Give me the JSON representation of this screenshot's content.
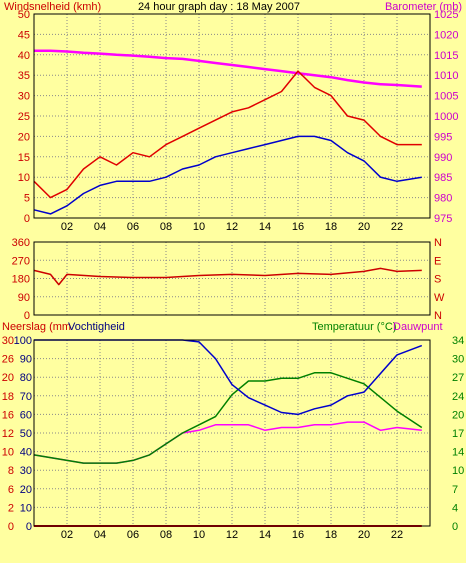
{
  "colors": {
    "background": "#ffffa0",
    "frame": "#000000",
    "wind_gust": "#e00000",
    "wind_avg": "#0000cc",
    "barometer": "#ff00ff",
    "direction": "#cc0000",
    "humidity": "#0000cc",
    "temperature": "#008000",
    "dewpoint": "#ff00ff",
    "rain": "#e00000",
    "label_red": "#cc0000",
    "label_green": "#008000",
    "label_magenta": "#cc00cc",
    "label_blue": "#000080"
  },
  "top_panel": {
    "title": "24 hour graph day : 18 May 2007",
    "left_label": "Windsnelheid (kmh)",
    "right_label": "Barometer (mb)",
    "left_ticks": [
      "0",
      "5",
      "10",
      "15",
      "20",
      "25",
      "30",
      "35",
      "40",
      "45",
      "50"
    ],
    "right_ticks": [
      "975",
      "980",
      "985",
      "990",
      "995",
      "1000",
      "1005",
      "1010",
      "1015",
      "1020",
      "1025"
    ],
    "x_ticks": [
      "02",
      "04",
      "06",
      "08",
      "10",
      "12",
      "14",
      "16",
      "18",
      "20",
      "22"
    ]
  },
  "mid_panel": {
    "left_ticks": [
      "0",
      "90",
      "180",
      "270",
      "360"
    ],
    "compass": [
      "N",
      "W",
      "S",
      "E",
      "N"
    ]
  },
  "bottom_panel": {
    "rain_label": "Neerslag (mm",
    "hum_label": "Vochtigheid",
    "temp_label": "Temperatuur (°C)",
    "dew_label": "Dauwpunt",
    "rain_ticks": [
      "0",
      "2",
      "4",
      "6",
      "8",
      "10",
      "12",
      "14",
      "16",
      "18",
      "20",
      "22",
      "24",
      "26",
      "28",
      "30"
    ],
    "hum_ticks": [
      "0",
      "10",
      "20",
      "30",
      "40",
      "50",
      "60",
      "70",
      "80",
      "90",
      "100"
    ],
    "right_ticks": [
      "0",
      "4",
      "7",
      "10",
      "14",
      "17",
      "20",
      "24",
      "27",
      "30",
      "34"
    ],
    "x_ticks": [
      "02",
      "04",
      "06",
      "08",
      "10",
      "12",
      "14",
      "16",
      "18",
      "20",
      "22"
    ]
  },
  "chart_data": [
    {
      "type": "line",
      "title": "24 hour graph day : 18 May 2007",
      "xlabel": "",
      "ylabel": "Windsnelheid (kmh)",
      "y2label": "Barometer (mb)",
      "xlim": [
        0,
        24
      ],
      "ylim": [
        0,
        50
      ],
      "y2lim": [
        975,
        1025
      ],
      "grid": true,
      "x": [
        0,
        1,
        2,
        3,
        4,
        5,
        6,
        7,
        8,
        9,
        10,
        11,
        12,
        13,
        14,
        15,
        16,
        17,
        18,
        19,
        20,
        21,
        22,
        23.5
      ],
      "series": [
        {
          "name": "wind_gust",
          "axis": "left",
          "values": [
            9,
            5,
            7,
            12,
            15,
            13,
            16,
            15,
            18,
            20,
            22,
            24,
            26,
            27,
            29,
            31,
            36,
            32,
            30,
            25,
            24,
            20,
            18,
            18
          ]
        },
        {
          "name": "wind_avg",
          "axis": "left",
          "values": [
            2,
            1,
            3,
            6,
            8,
            9,
            9,
            9,
            10,
            12,
            13,
            15,
            16,
            17,
            18,
            19,
            20,
            20,
            19,
            16,
            14,
            10,
            9,
            10
          ]
        },
        {
          "name": "barometer",
          "axis": "right",
          "values": [
            1016,
            1016,
            1015.8,
            1015.5,
            1015.3,
            1015,
            1014.8,
            1014.5,
            1014.2,
            1014,
            1013.5,
            1013,
            1012.5,
            1012,
            1011.5,
            1011,
            1010.5,
            1010,
            1009.5,
            1008.8,
            1008.2,
            1007.8,
            1007.6,
            1007.2
          ]
        }
      ]
    },
    {
      "type": "line",
      "title": "",
      "ylabel": "",
      "xlim": [
        0,
        24
      ],
      "ylim": [
        0,
        360
      ],
      "grid": true,
      "x": [
        0,
        1,
        1.5,
        2,
        4,
        6,
        8,
        10,
        12,
        14,
        16,
        18,
        20,
        21,
        22,
        23.5
      ],
      "series": [
        {
          "name": "wind_direction",
          "axis": "left",
          "values": [
            220,
            200,
            150,
            200,
            190,
            185,
            185,
            195,
            200,
            195,
            205,
            200,
            215,
            230,
            215,
            220
          ]
        }
      ]
    },
    {
      "type": "line",
      "title": "",
      "ylabel": "Vochtigheid",
      "y2label": "Temperatuur (°C)",
      "xlim": [
        0,
        24
      ],
      "ylim": [
        0,
        100
      ],
      "y2lim": [
        0,
        34
      ],
      "grid": true,
      "x": [
        0,
        1,
        2,
        3,
        4,
        5,
        6,
        7,
        8,
        9,
        10,
        11,
        12,
        13,
        14,
        15,
        16,
        17,
        18,
        19,
        20,
        21,
        22,
        23.5
      ],
      "series": [
        {
          "name": "humidity",
          "axis": "left",
          "values": [
            100,
            100,
            100,
            100,
            100,
            100,
            100,
            100,
            100,
            100,
            99,
            90,
            76,
            69,
            65,
            61,
            60,
            63,
            65,
            70,
            72,
            82,
            92,
            97
          ]
        },
        {
          "name": "temperature",
          "axis": "right",
          "values": [
            13,
            12.5,
            12,
            11.5,
            11.5,
            11.5,
            12,
            13,
            15,
            17,
            18.5,
            20,
            24,
            26.5,
            26.5,
            27,
            27,
            28,
            28,
            27,
            26,
            23.5,
            21,
            18
          ]
        },
        {
          "name": "dewpoint",
          "axis": "right",
          "values": [
            13,
            12.5,
            12,
            11.5,
            11.5,
            11.5,
            12,
            13,
            15,
            17,
            17.5,
            18.5,
            18.5,
            18.5,
            17.5,
            18,
            18,
            18.5,
            18.5,
            19,
            19,
            17.5,
            18,
            17.5
          ]
        },
        {
          "name": "rain",
          "axis": "left",
          "values": [
            0,
            0,
            0,
            0,
            0,
            0,
            0,
            0,
            0,
            0,
            0,
            0,
            0,
            0,
            0,
            0,
            0,
            0,
            0,
            0,
            0,
            0,
            0,
            0
          ]
        }
      ]
    }
  ]
}
